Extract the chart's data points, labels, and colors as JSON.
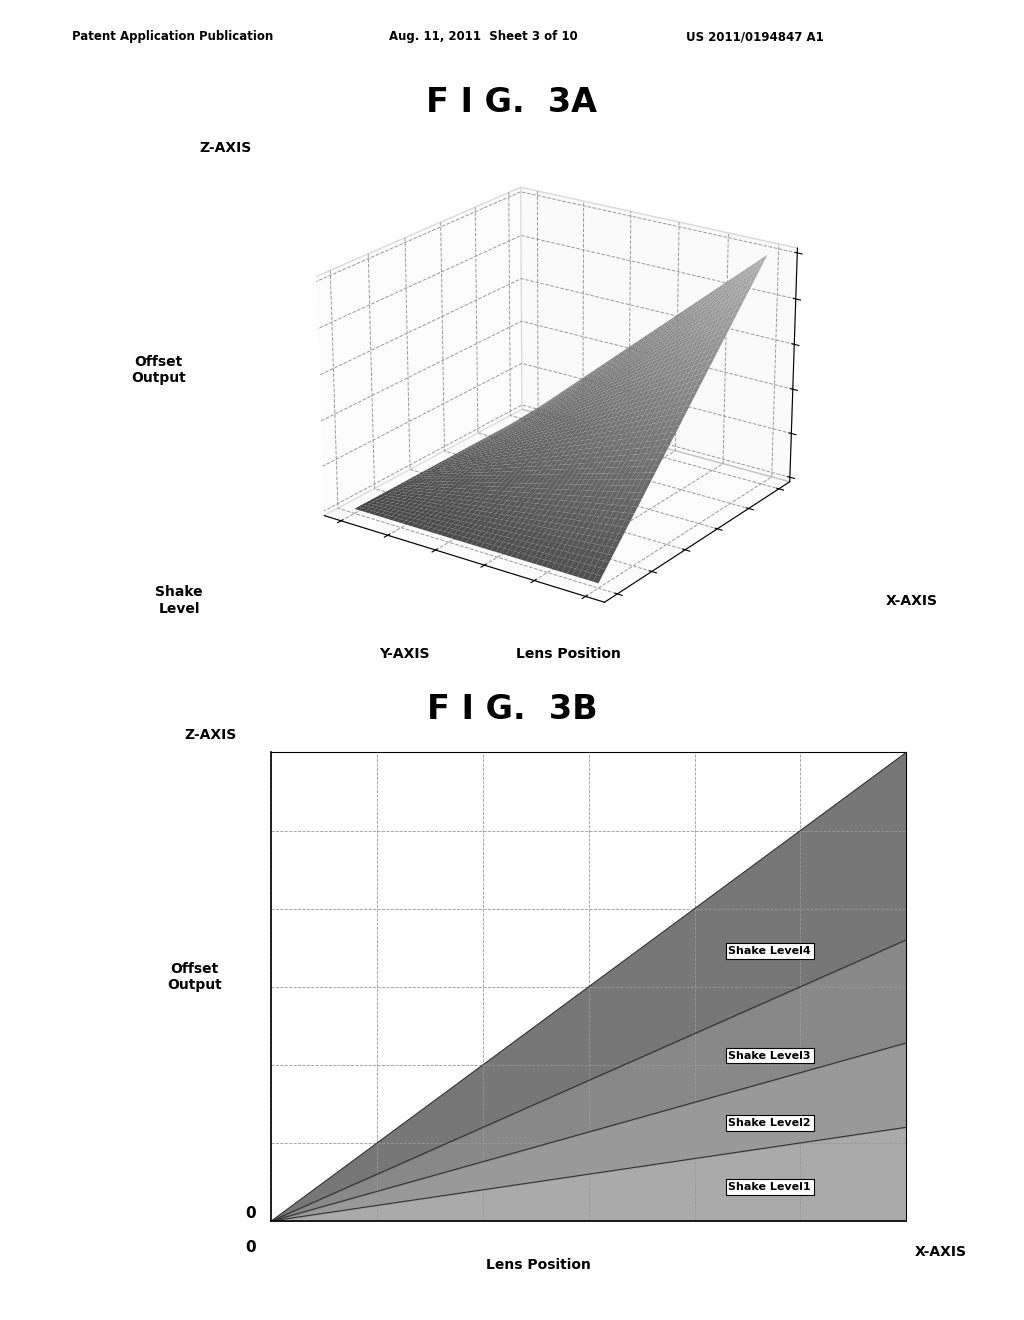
{
  "fig_title_3a": "F I G.  3A",
  "fig_title_3b": "F I G.  3B",
  "patent_header": "Patent Application Publication",
  "patent_date": "Aug. 11, 2011  Sheet 3 of 10",
  "patent_number": "US 2011/0194847 A1",
  "fig3a_zaxis_label": "Z-AXIS",
  "fig3a_xaxis_label": "X-AXIS",
  "fig3a_yaxis_label": "Y-AXIS",
  "fig3a_offset_label": "Offset\nOutput",
  "fig3a_shake_label": "Shake\nLevel",
  "fig3a_lens_label": "Lens Position",
  "fig3b_zaxis_label": "Z-AXIS",
  "fig3b_offset_label": "Offset\nOutput",
  "fig3b_xlabel": "Lens Position",
  "fig3b_xaxis_label": "X-AXIS",
  "shake_levels": [
    "Shake Level1",
    "Shake Level2",
    "Shake Level3",
    "Shake Level4"
  ],
  "slopes": [
    0.2,
    0.38,
    0.6,
    1.0
  ],
  "surface_color": "#888888",
  "background_color": "#ffffff",
  "grid_color": "#aaaaaa",
  "band_colors": [
    "#aaaaaa",
    "#999999",
    "#888888",
    "#777777"
  ]
}
